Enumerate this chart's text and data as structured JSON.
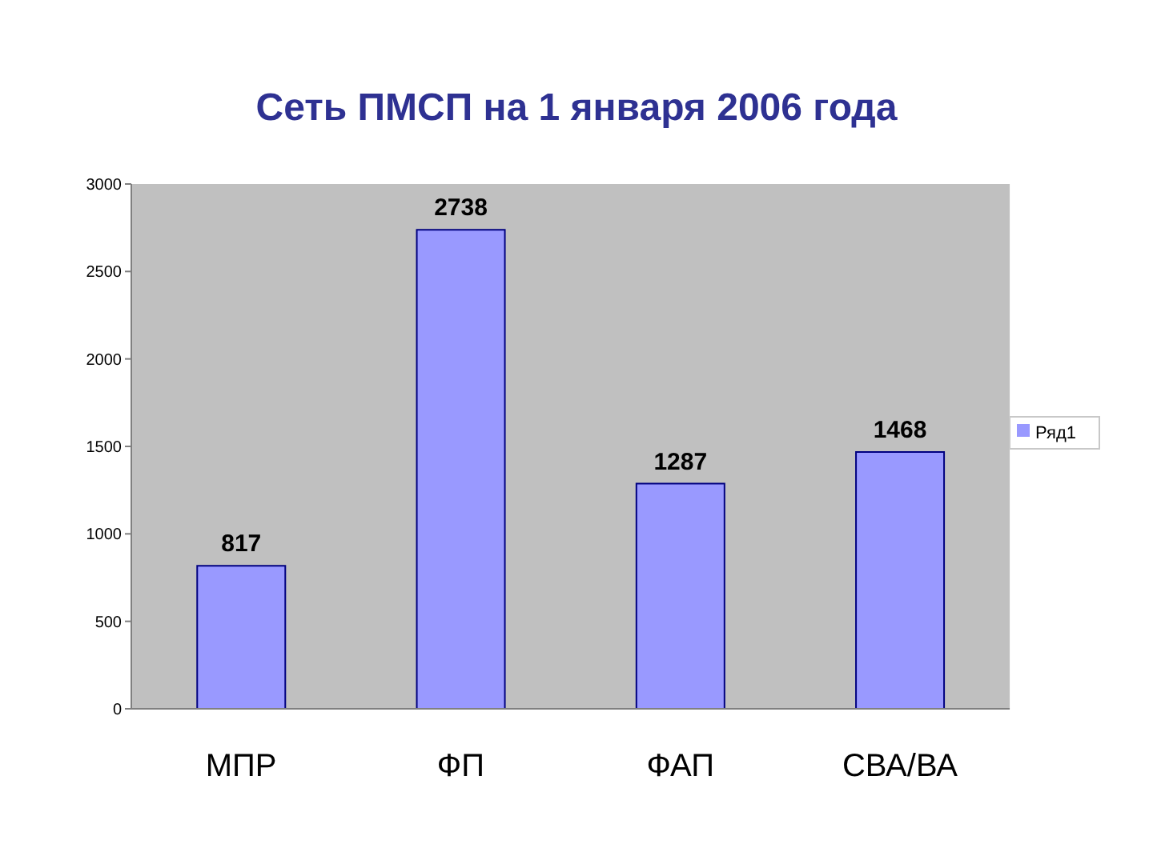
{
  "chart_data": {
    "type": "bar",
    "title": "Сеть ПМСП на 1 января 2006 года",
    "categories": [
      "МПР",
      "ФП",
      "ФАП",
      "СВА/ВА"
    ],
    "series": [
      {
        "name": "Ряд1",
        "color": "#9999ff",
        "values": [
          817,
          2738,
          1287,
          1468
        ]
      }
    ],
    "ylim": [
      0,
      3000
    ],
    "yticks": [
      0,
      500,
      1000,
      1500,
      2000,
      2500,
      3000
    ],
    "data_labels": true,
    "legend": "right"
  }
}
